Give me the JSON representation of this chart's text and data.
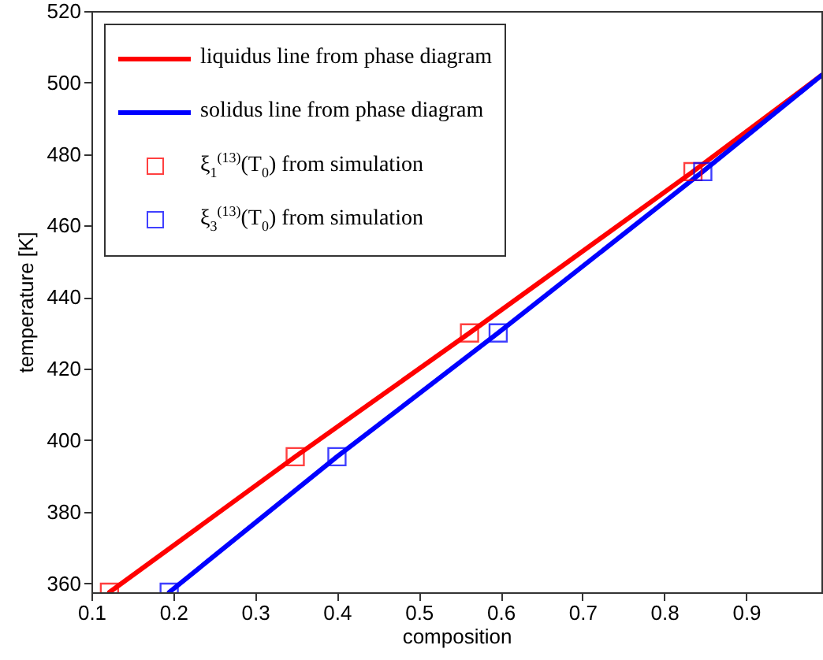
{
  "chart_data": {
    "type": "line",
    "xlabel": "composition",
    "ylabel": "temperature [K]",
    "xlim": [
      0.1,
      0.992
    ],
    "ylim": [
      357.5,
      520
    ],
    "xticks": [
      0.1,
      0.2,
      0.3,
      0.4,
      0.5,
      0.6,
      0.7,
      0.8,
      0.9
    ],
    "yticks": [
      360,
      380,
      400,
      420,
      440,
      460,
      480,
      500,
      520
    ],
    "grid": false,
    "legend": "top left",
    "series": [
      {
        "name": "liquidus line from phase diagram",
        "color": "#ff0000",
        "line_style": "solid",
        "x": [
          0.122,
          0.349,
          0.562,
          0.835,
          0.992
        ],
        "values": [
          357.5,
          395.4,
          430,
          475.1,
          502
        ]
      },
      {
        "name": "solidus line from phase diagram",
        "color": "#0000ff",
        "line_style": "solid",
        "x": [
          0.195,
          0.4,
          0.597,
          0.847,
          0.992
        ],
        "values": [
          357.5,
          395.4,
          430,
          475.1,
          502
        ]
      },
      {
        "name": "ξ$_{1}$$^{(13)}$(T$_{0}$) from simulation",
        "type": "scatter",
        "marker": "square",
        "color": "#ff0000",
        "x": [
          0.122,
          0.349,
          0.562,
          0.835
        ],
        "values": [
          357.5,
          395.4,
          430,
          475.1
        ]
      },
      {
        "name": "ξ$_{3}$$^{(13)}$(T$_{0}$) from simulation",
        "type": "scatter",
        "marker": "square",
        "color": "#0000ff",
        "x": [
          0.195,
          0.4,
          0.597,
          0.847
        ],
        "values": [
          357.5,
          395.4,
          430,
          475.1
        ]
      }
    ]
  }
}
